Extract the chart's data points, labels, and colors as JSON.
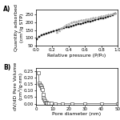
{
  "panel_A": {
    "label": "A)",
    "xlabel": "Relative pressure (P/P₀)",
    "ylabel": "Quantity adsorbed\n(cm³/g STP)",
    "xlim": [
      0.0,
      1.0
    ],
    "ylim": [
      50,
      280
    ],
    "yticks": [
      50,
      100,
      150,
      200,
      250
    ],
    "xticks": [
      0.0,
      0.2,
      0.4,
      0.6,
      0.8,
      1.0
    ],
    "adsorption_x": [
      0.01,
      0.04,
      0.07,
      0.1,
      0.13,
      0.16,
      0.19,
      0.22,
      0.25,
      0.28,
      0.31,
      0.34,
      0.37,
      0.4,
      0.43,
      0.46,
      0.49,
      0.52,
      0.55,
      0.58,
      0.61,
      0.64,
      0.67,
      0.7,
      0.73,
      0.76,
      0.79,
      0.82,
      0.85,
      0.88,
      0.91,
      0.94,
      0.97
    ],
    "adsorption_y": [
      93,
      108,
      117,
      122,
      127,
      133,
      139,
      144,
      149,
      154,
      159,
      163,
      166,
      170,
      174,
      178,
      182,
      186,
      190,
      194,
      198,
      202,
      206,
      210,
      214,
      218,
      222,
      226,
      231,
      236,
      241,
      246,
      256
    ],
    "desorption_x": [
      0.97,
      0.94,
      0.91,
      0.88,
      0.85,
      0.82,
      0.79,
      0.76,
      0.73,
      0.7,
      0.67,
      0.64,
      0.61,
      0.58,
      0.55,
      0.52,
      0.49,
      0.46,
      0.43,
      0.4,
      0.37,
      0.34,
      0.31,
      0.28,
      0.25
    ],
    "desorption_y": [
      258,
      254,
      250,
      247,
      244,
      240,
      237,
      233,
      230,
      227,
      224,
      221,
      218,
      215,
      212,
      209,
      206,
      202,
      197,
      191,
      184,
      173,
      161,
      149,
      138
    ],
    "adsorption_color": "#222222",
    "desorption_color": "#aaaaaa",
    "marker_size": 2.0
  },
  "panel_B": {
    "label": "B)",
    "xlabel": "Pore diameter (nm)",
    "ylabel": "dV/dD Pore Volume\n(cm³/g·nm)",
    "xlim": [
      0,
      50
    ],
    "ylim": [
      -0.005,
      0.27
    ],
    "yticks": [
      0.0,
      0.05,
      0.1,
      0.15,
      0.2,
      0.25
    ],
    "xticks": [
      0,
      10,
      20,
      30,
      40,
      50
    ],
    "bjh_x": [
      1.5,
      2.0,
      2.5,
      3.0,
      3.3,
      3.6,
      3.9,
      4.2,
      4.5,
      4.8,
      5.2,
      5.7,
      6.3,
      7.0,
      8.0,
      9.5,
      12.0,
      16.0,
      22.0,
      30.0,
      40.0,
      50.0
    ],
    "bjh_y": [
      0.235,
      0.155,
      0.145,
      0.135,
      0.128,
      0.118,
      0.108,
      0.072,
      0.048,
      0.032,
      0.02,
      0.013,
      0.008,
      0.005,
      0.003,
      0.002,
      0.001,
      0.001,
      0.001,
      0.001,
      0.001,
      0.001
    ],
    "line_color": "#333333",
    "marker_color": "#ffffff",
    "marker_edge_color": "#333333",
    "marker_size": 2.5
  },
  "fig_background": "#ffffff",
  "font_size": 4.5
}
